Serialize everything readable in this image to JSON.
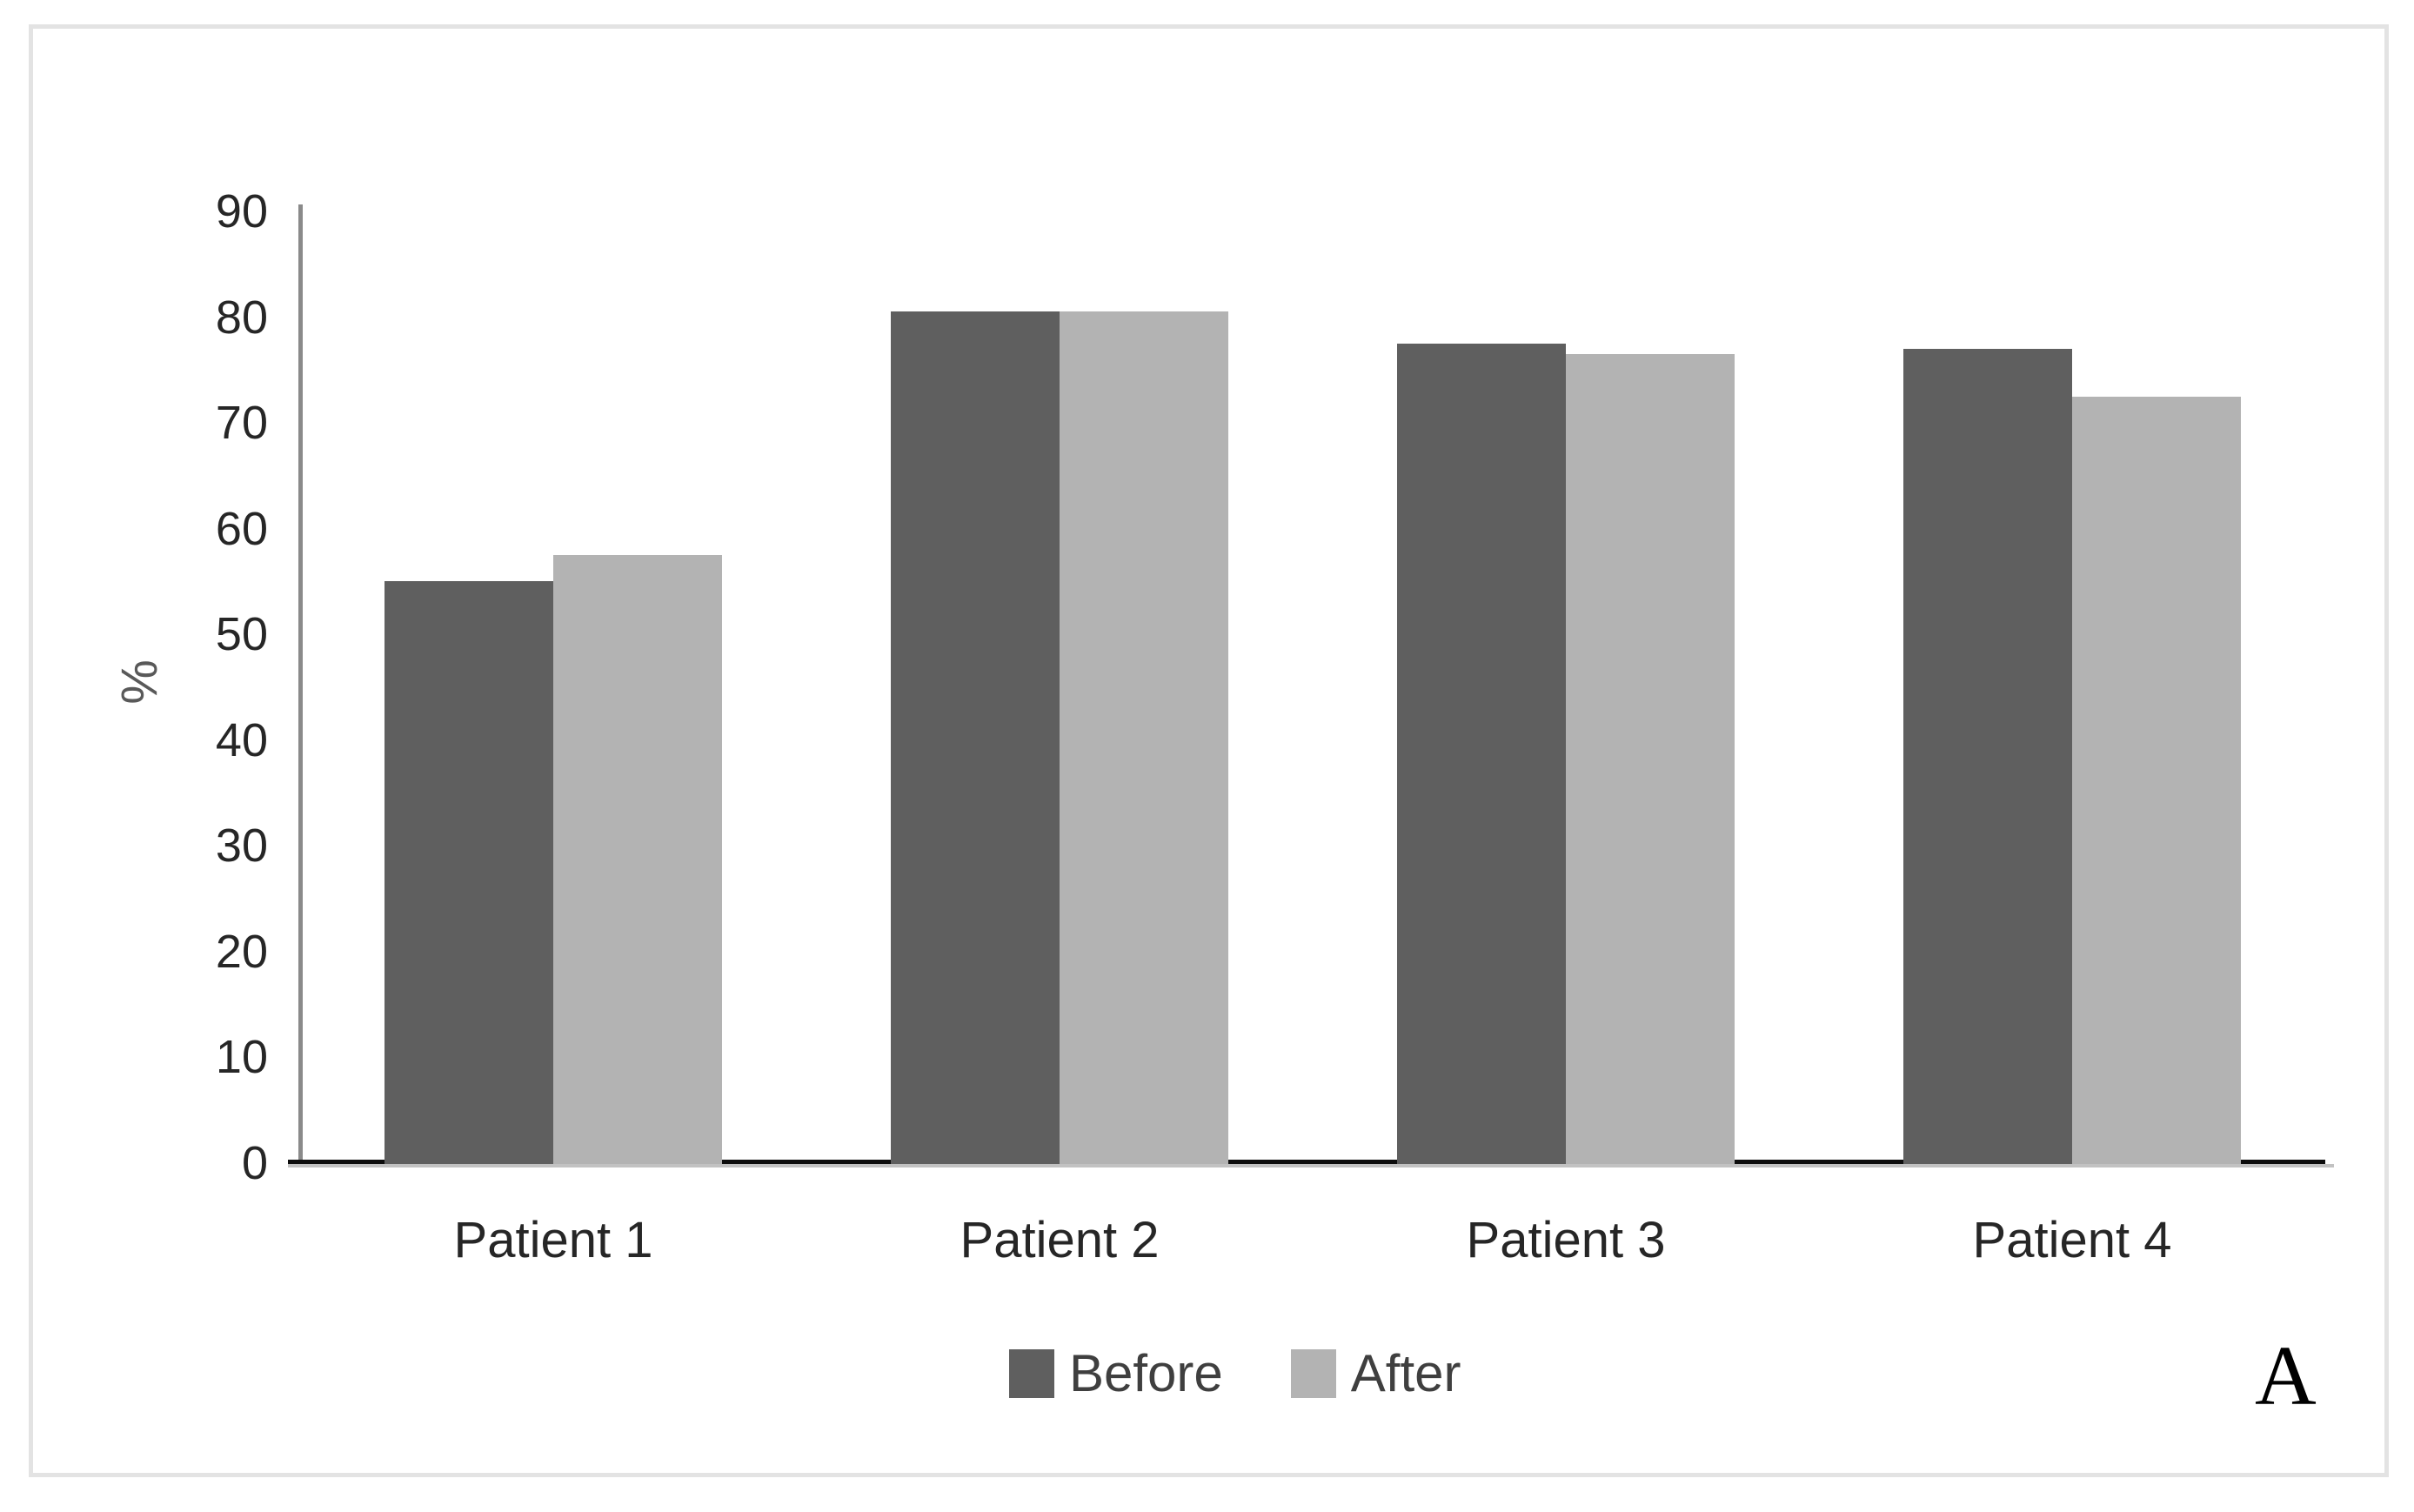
{
  "figure": {
    "panel_label": "A",
    "background": "#ffffff",
    "frame_border_color": "#e3e3e3"
  },
  "chart_data": {
    "type": "bar",
    "title": "",
    "xlabel": "",
    "ylabel": "%",
    "categories": [
      "Patient 1",
      "Patient 2",
      "Patient 3",
      "Patient 4"
    ],
    "series": [
      {
        "name": "Before",
        "color": "#5f5f5f",
        "values": [
          55,
          80.5,
          77.5,
          77
        ]
      },
      {
        "name": "After",
        "color": "#b3b3b3",
        "values": [
          57.5,
          80.5,
          76.5,
          72.5
        ]
      }
    ],
    "ylim": [
      0,
      90
    ],
    "yticks": [
      0,
      10,
      20,
      30,
      40,
      50,
      60,
      70,
      80,
      90
    ],
    "grid": false,
    "legend_position": "bottom-center",
    "axis_colors": {
      "y_line": "#8a8a8a",
      "x_line": "#0d0d0d",
      "x_underline": "#c2c2c2"
    },
    "text_colors": {
      "tick": "#262626",
      "category": "#262626",
      "legend": "#3f3f3f",
      "ylabel": "#595959"
    }
  }
}
